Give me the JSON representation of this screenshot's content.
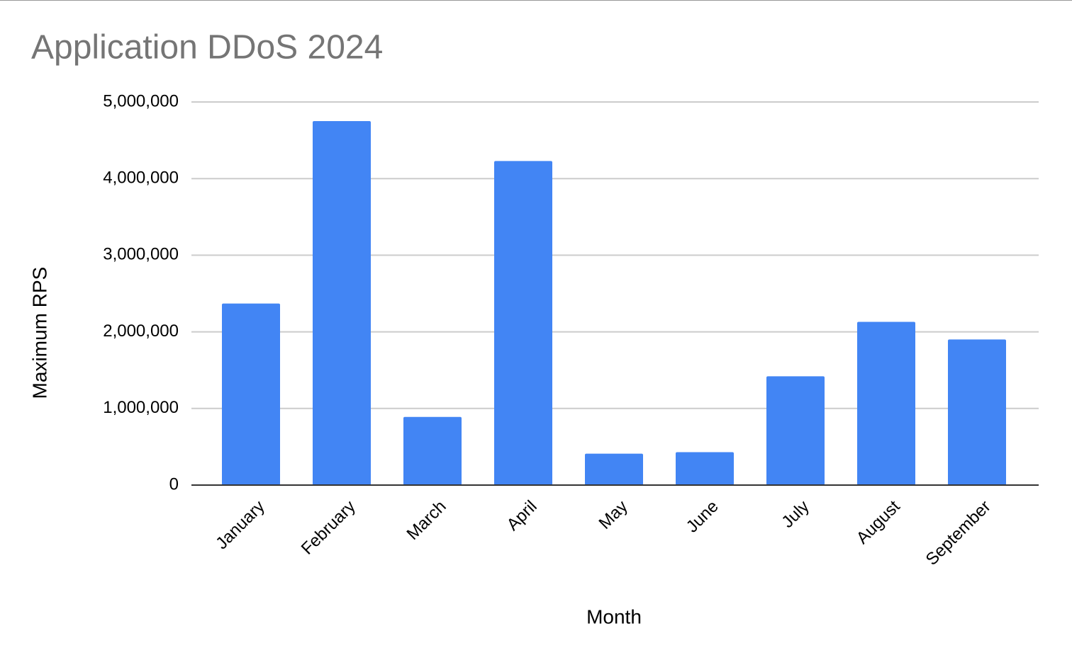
{
  "chart_data": {
    "type": "bar",
    "title": "Application DDoS 2024",
    "x_label": "Month",
    "y_label": "Maximum RPS",
    "categories": [
      "January",
      "February",
      "March",
      "April",
      "May",
      "June",
      "July",
      "August",
      "September"
    ],
    "values": [
      2370000,
      4750000,
      890000,
      4230000,
      410000,
      430000,
      1420000,
      2130000,
      1900000
    ],
    "color": "#4285f4",
    "ylim": [
      0,
      5000000
    ],
    "yticks": [
      0,
      {
        "value": 1000000,
        "label": "1,000,000"
      },
      {
        "value": 2000000,
        "label": "2,000,000"
      },
      {
        "value": 3000000,
        "label": "3,000,000"
      },
      {
        "value": 4000000,
        "label": "4,000,000"
      },
      {
        "value": 5000000,
        "label": "5,000,000"
      }
    ],
    "grid": true
  }
}
